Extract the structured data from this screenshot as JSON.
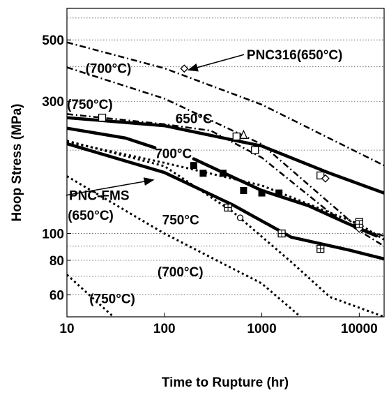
{
  "chart_data": {
    "type": "line",
    "title": "",
    "xlabel": "Time to Rupture (hr)",
    "ylabel": "Hoop Stress (MPa)",
    "xscale": "log",
    "yscale": "log",
    "xlim": [
      10,
      18000
    ],
    "ylim": [
      50,
      650
    ],
    "grid": "horizontal dotted",
    "x_ticks": [
      {
        "value": 10,
        "label": "10"
      },
      {
        "value": 100,
        "label": "100"
      },
      {
        "value": 1000,
        "label": "1000"
      },
      {
        "value": 10000,
        "label": "10000"
      }
    ],
    "y_ticks": [
      {
        "value": 60,
        "label": "60"
      },
      {
        "value": 80,
        "label": "80"
      },
      {
        "value": 100,
        "label": "100"
      },
      {
        "value": 300,
        "label": "300"
      },
      {
        "value": 500,
        "label": "500"
      }
    ],
    "y_gridlines": [
      60,
      70,
      80,
      90,
      100,
      200,
      300,
      400,
      500,
      600
    ],
    "series": [
      {
        "style": "solid",
        "color": "#000000",
        "width": 4.5,
        "points": [
          [
            10,
            262
          ],
          [
            100,
            245
          ],
          [
            1000,
            207
          ],
          [
            5000,
            165
          ],
          [
            18000,
            140
          ]
        ]
      },
      {
        "style": "solid",
        "color": "#000000",
        "width": 4.5,
        "points": [
          [
            10,
            240
          ],
          [
            40,
            221
          ],
          [
            80,
            204
          ]
        ]
      },
      {
        "style": "solid",
        "color": "#000000",
        "width": 4.5,
        "points": [
          [
            200,
            186
          ],
          [
            500,
            160
          ],
          [
            1000,
            143
          ],
          [
            3000,
            126
          ],
          [
            7000,
            110
          ],
          [
            15000,
            98
          ]
        ]
      },
      {
        "style": "solid",
        "color": "#000000",
        "width": 4.5,
        "points": [
          [
            10,
            211
          ],
          [
            100,
            166
          ],
          [
            500,
            127
          ],
          [
            2000,
            97
          ],
          [
            8000,
            87
          ],
          [
            18000,
            81
          ]
        ]
      },
      {
        "style": "dashdot",
        "color": "#000000",
        "width": 2.5,
        "points": [
          [
            10,
            490
          ],
          [
            100,
            395
          ],
          [
            1000,
            292
          ],
          [
            10000,
            195
          ],
          [
            18000,
            176
          ]
        ]
      },
      {
        "style": "dashdot",
        "color": "#000000",
        "width": 2.5,
        "points": [
          [
            10,
            398
          ],
          [
            100,
            307
          ],
          [
            1000,
            210
          ],
          [
            10000,
            104
          ],
          [
            18000,
            98
          ]
        ]
      },
      {
        "style": "dashdot",
        "color": "#000000",
        "width": 2.5,
        "points": [
          [
            10,
            270
          ],
          [
            100,
            248
          ],
          [
            300,
            235
          ],
          [
            1000,
            188
          ],
          [
            5000,
            119
          ],
          [
            18000,
            90
          ]
        ]
      },
      {
        "style": "dotted",
        "color": "#000000",
        "width": 3,
        "points": [
          [
            10,
            214
          ],
          [
            100,
            180
          ],
          [
            1000,
            149
          ],
          [
            10000,
            108
          ],
          [
            18000,
            95
          ]
        ]
      },
      {
        "style": "dotted",
        "color": "#000000",
        "width": 3,
        "points": [
          [
            10,
            216
          ],
          [
            100,
            175
          ],
          [
            500,
            120
          ],
          [
            2000,
            79
          ],
          [
            5000,
            59
          ],
          [
            18000,
            50
          ]
        ]
      },
      {
        "style": "dotted",
        "color": "#000000",
        "width": 3,
        "points": [
          [
            10,
            161
          ],
          [
            100,
            100
          ],
          [
            1000,
            66
          ],
          [
            2500,
            50
          ]
        ]
      },
      {
        "style": "dotted",
        "color": "#000000",
        "width": 3,
        "points": [
          [
            10,
            71
          ],
          [
            30,
            50
          ]
        ]
      }
    ],
    "markers": [
      {
        "shape": "open-square",
        "points": [
          [
            23,
            262
          ],
          [
            550,
            224
          ],
          [
            850,
            200
          ],
          [
            4000,
            162
          ],
          [
            10000,
            110
          ]
        ]
      },
      {
        "shape": "open-triangle",
        "points": [
          [
            650,
            227
          ]
        ]
      },
      {
        "shape": "open-diamond",
        "points": [
          [
            160,
            394
          ],
          [
            4500,
            158
          ],
          [
            10000,
            104
          ]
        ]
      },
      {
        "shape": "open-circle",
        "points": [
          [
            600,
            114
          ]
        ]
      },
      {
        "shape": "crossed-square",
        "points": [
          [
            450,
            124
          ],
          [
            1600,
            100
          ],
          [
            4000,
            88
          ],
          [
            10000,
            108
          ]
        ]
      },
      {
        "shape": "filled-square",
        "points": [
          [
            200,
            176
          ],
          [
            250,
            165
          ],
          [
            400,
            165
          ],
          [
            650,
            143
          ],
          [
            1000,
            140
          ],
          [
            1500,
            140
          ]
        ]
      }
    ],
    "annotations": [
      {
        "text": "PNC316(650°C)",
        "x": 700,
        "y": 425,
        "anchor": "start",
        "arrow_to": [
          160,
          394
        ]
      },
      {
        "text": "(700°C)",
        "x": 15.5,
        "y": 380,
        "anchor": "start"
      },
      {
        "text": "(750°C)",
        "x": 10,
        "y": 282,
        "anchor": "start"
      },
      {
        "text": "650°C",
        "x": 130,
        "y": 250,
        "anchor": "start"
      },
      {
        "text": "700°C",
        "x": 80,
        "y": 187,
        "anchor": "start"
      },
      {
        "text": "PNC-FMS",
        "x": 10.5,
        "y": 132,
        "anchor": "start",
        "arrow_to": [
          70,
          158
        ]
      },
      {
        "text": "(650°C)",
        "x": 10.2,
        "y": 112,
        "anchor": "start"
      },
      {
        "text": "750°C",
        "x": 95,
        "y": 108,
        "anchor": "start"
      },
      {
        "text": "(700°C)",
        "x": 85,
        "y": 70,
        "anchor": "start"
      },
      {
        "text": "(750°C)",
        "x": 17,
        "y": 56,
        "anchor": "start"
      }
    ]
  }
}
